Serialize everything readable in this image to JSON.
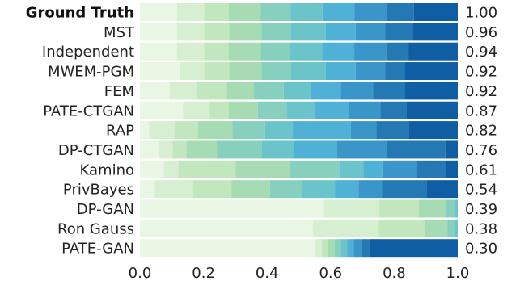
{
  "chart_data": {
    "type": "bar",
    "orientation": "horizontal-stacked",
    "xlim": [
      0,
      1
    ],
    "x_ticks": [
      "0.0",
      "0.2",
      "0.4",
      "0.6",
      "0.8",
      "1.0"
    ],
    "grid": false,
    "legend": "none",
    "colors": [
      "#eaf6e4",
      "#d6efd0",
      "#c2e6bd",
      "#a6dbb3",
      "#87d0c0",
      "#6cc4cb",
      "#4fb1d6",
      "#3a96c8",
      "#2479b5",
      "#0f5da3"
    ],
    "rows": [
      {
        "label": "Ground Truth",
        "bold": true,
        "score": "1.00",
        "segments": [
          0.075,
          0.055,
          0.05,
          0.065,
          0.06,
          0.065,
          0.065,
          0.065,
          0.055,
          0.089
        ]
      },
      {
        "label": "MST",
        "score": "0.96",
        "segments": [
          0.075,
          0.055,
          0.05,
          0.065,
          0.06,
          0.07,
          0.06,
          0.06,
          0.055,
          0.091
        ]
      },
      {
        "label": "Independent",
        "score": "0.94",
        "segments": [
          0.075,
          0.055,
          0.05,
          0.065,
          0.06,
          0.065,
          0.065,
          0.065,
          0.045,
          0.1
        ]
      },
      {
        "label": "MWEM-PGM",
        "score": "0.92",
        "segments": [
          0.08,
          0.05,
          0.05,
          0.065,
          0.06,
          0.07,
          0.06,
          0.06,
          0.04,
          0.106
        ]
      },
      {
        "label": "FEM",
        "score": "0.92",
        "segments": [
          0.06,
          0.055,
          0.06,
          0.055,
          0.06,
          0.055,
          0.06,
          0.065,
          0.065,
          0.106
        ]
      },
      {
        "label": "PATE-CTGAN",
        "score": "0.87",
        "segments": [
          0.09,
          0.055,
          0.04,
          0.06,
          0.06,
          0.06,
          0.07,
          0.065,
          0.055,
          0.106
        ]
      },
      {
        "label": "RAP",
        "score": "0.82",
        "segments": [
          0.02,
          0.055,
          0.05,
          0.075,
          0.07,
          0.06,
          0.125,
          0.055,
          0.07,
          0.106
        ]
      },
      {
        "label": "DP-CTGAN",
        "score": "0.76",
        "segments": [
          0.055,
          0.04,
          0.04,
          0.09,
          0.13,
          0.095,
          0.125,
          0.145,
          0.17,
          0.036
        ]
      },
      {
        "label": "Kamino",
        "score": "0.61",
        "segments": [
          0.075,
          0.045,
          0.18,
          0.17,
          0.155,
          0.075,
          0.06,
          0.105,
          0.095,
          0.036
        ]
      },
      {
        "label": "PrivBayes",
        "score": "0.54",
        "segments": [
          0.05,
          0.13,
          0.13,
          0.13,
          0.11,
          0.11,
          0.08,
          0.08,
          0.15,
          0.106
        ]
      },
      {
        "label": "DP-GAN",
        "score": "0.39",
        "segments": [
          0.575,
          0.175,
          0.125,
          0.085,
          0.025,
          0.012,
          0.0,
          0.0,
          0.0,
          0.0
        ]
      },
      {
        "label": "Ron Gauss",
        "score": "0.38",
        "segments": [
          0.545,
          0.205,
          0.15,
          0.07,
          0.02,
          0.012,
          0.0,
          0.0,
          0.0,
          0.0
        ]
      },
      {
        "label": "PATE-GAN",
        "score": "0.30",
        "segments": [
          0.55,
          0.02,
          0.02,
          0.02,
          0.02,
          0.02,
          0.02,
          0.025,
          0.025,
          0.276
        ]
      }
    ]
  }
}
